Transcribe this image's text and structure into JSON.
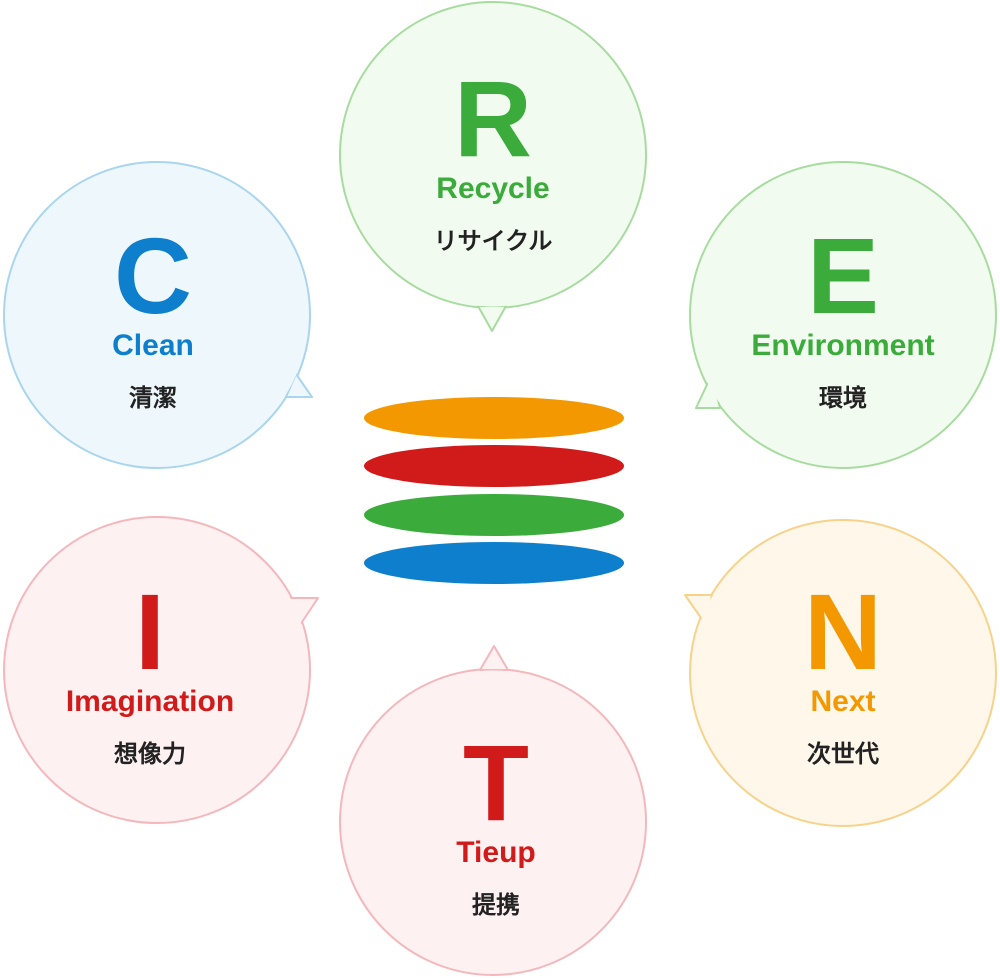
{
  "diagram": {
    "colors": {
      "blue": "#0d7fcc",
      "green": "#3bac3b",
      "orange": "#f39800",
      "red": "#d11a1a",
      "dark_text": "#222222"
    },
    "bubbles": [
      {
        "id": "clean",
        "letter": "C",
        "word": "Clean",
        "japanese": "清潔",
        "text_color": "#0d7fcc",
        "border": "#a9d5ee",
        "fill": "#eef7fc",
        "pointer": "right"
      },
      {
        "id": "recycle",
        "letter": "R",
        "word": "Recycle",
        "japanese": "リサイクル",
        "text_color": "#3bac3b",
        "border": "#a7dc9f",
        "fill": "#f2fbf0",
        "pointer": "bottom"
      },
      {
        "id": "environment",
        "letter": "E",
        "word": "Environment",
        "japanese": "環境",
        "text_color": "#3bac3b",
        "border": "#a7dc9f",
        "fill": "#f2fbf0",
        "pointer": "left"
      },
      {
        "id": "next",
        "letter": "N",
        "word": "Next",
        "japanese": "次世代",
        "text_color": "#f39800",
        "border": "#f7d28a",
        "fill": "#fef7ea",
        "pointer": "left"
      },
      {
        "id": "tieup",
        "letter": "T",
        "word": "Tieup",
        "japanese": "提携",
        "text_color": "#d11a1a",
        "border": "#f4b7bb",
        "fill": "#fdf1f2",
        "pointer": "top"
      },
      {
        "id": "imagination",
        "letter": "I",
        "word": "Imagination",
        "japanese": "想像力",
        "text_color": "#d11a1a",
        "border": "#f4b7bb",
        "fill": "#fdf1f2",
        "pointer": "right"
      }
    ],
    "logo_stripes": [
      "#f39800",
      "#d11a1a",
      "#3bac3b",
      "#0d7fcc"
    ]
  }
}
